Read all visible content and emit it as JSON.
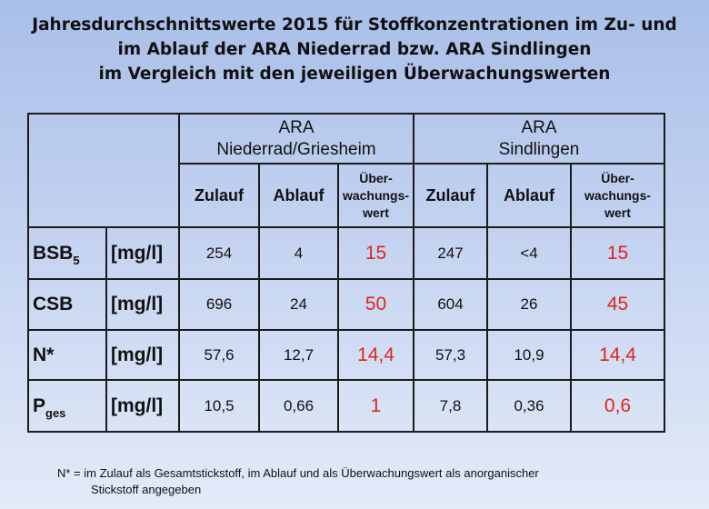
{
  "title": {
    "line1": "Jahresdurchschnittswerte 2015 für Stoffkonzentrationen im Zu- und",
    "line2": "im Ablauf der ARA Niederrad bzw. ARA Sindlingen",
    "line3": "im Vergleich mit den jeweiligen Überwachungswerten"
  },
  "table": {
    "groups": [
      {
        "line1": "ARA",
        "line2": "Niederrad/Griesheim"
      },
      {
        "line1": "ARA",
        "line2": "Sindlingen"
      }
    ],
    "columns": {
      "zulauf": "Zulauf",
      "ablauf": "Ablauf",
      "monitor_l1": "Über-",
      "monitor_l2": "wachungs-",
      "monitor_l3": "wert"
    },
    "rows": [
      {
        "param": "BSB",
        "param_sub": "5",
        "unit": "[mg/l]",
        "values": [
          "254",
          "4",
          "15",
          "247",
          "<4",
          "15"
        ]
      },
      {
        "param": "CSB",
        "param_sub": "",
        "unit": "[mg/l]",
        "values": [
          "696",
          "24",
          "50",
          "604",
          "26",
          "45"
        ]
      },
      {
        "param": "N*",
        "param_sub": "",
        "unit": "[mg/l]",
        "values": [
          "57,6",
          "12,7",
          "14,4",
          "57,3",
          "10,9",
          "14,4"
        ]
      },
      {
        "param": "P",
        "param_sub": "ges",
        "unit": "[mg/l]",
        "values": [
          "10,5",
          "0,66",
          "1",
          "7,8",
          "0,36",
          "0,6"
        ]
      }
    ]
  },
  "footnote": {
    "line1": "N* = im Zulauf als Gesamtstickstoff, im Ablauf und als Überwachungswert als anorganischer",
    "line2": "Stickstoff angegeben"
  },
  "colors": {
    "limit_value": "#e1251b",
    "background_top": "#a9bfe9",
    "background_bottom": "#e3ebf8"
  }
}
